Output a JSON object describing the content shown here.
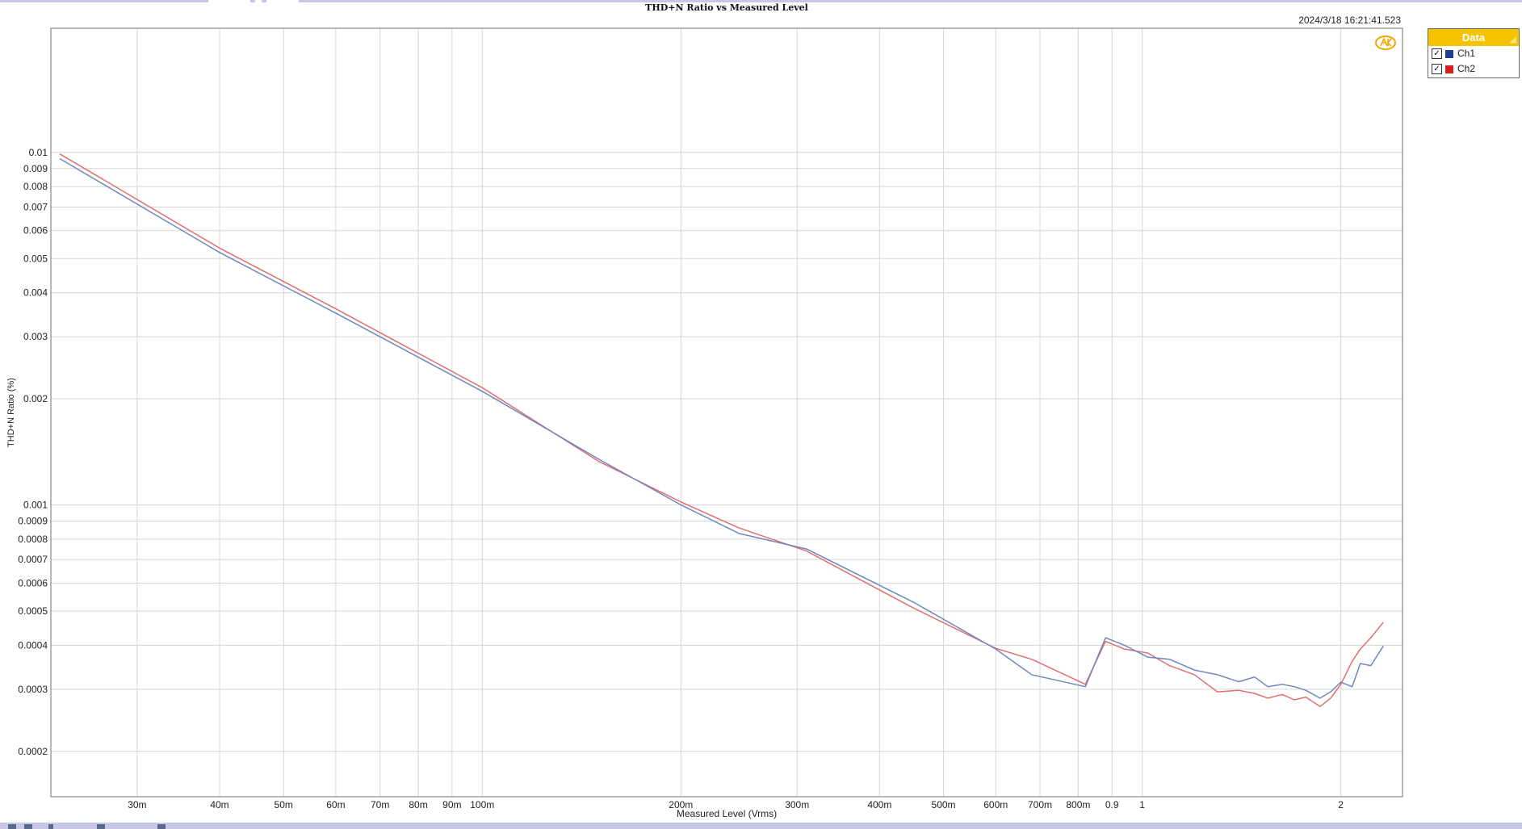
{
  "timestamp": "2024/3/18 16:21:41.523",
  "legend": {
    "title": "Data",
    "items": [
      {
        "name": "Ch1",
        "color": "#1f3f8f",
        "checked": true
      },
      {
        "name": "Ch2",
        "color": "#d42020",
        "checked": true
      }
    ]
  },
  "colors": {
    "ch1_line": "#6f86be",
    "ch2_line": "#e07070",
    "grid": "#d7d7d7",
    "logo": "#f2a800"
  },
  "chart_data": {
    "type": "line",
    "title": "THD+N Ratio vs Measured Level",
    "xlabel": "Measured Level (Vrms)",
    "ylabel": "THD+N Ratio (%)",
    "xscale": "log",
    "yscale": "log",
    "xlim": [
      0.0222,
      2.48
    ],
    "ylim": [
      0.0001487,
      0.0225
    ],
    "grid": true,
    "legend_position": "top-right-outside",
    "x_ticks": [
      {
        "value": 0.03,
        "label": "30m"
      },
      {
        "value": 0.04,
        "label": "40m"
      },
      {
        "value": 0.05,
        "label": "50m"
      },
      {
        "value": 0.06,
        "label": "60m"
      },
      {
        "value": 0.07,
        "label": "70m"
      },
      {
        "value": 0.08,
        "label": "80m"
      },
      {
        "value": 0.09,
        "label": "90m"
      },
      {
        "value": 0.1,
        "label": "100m"
      },
      {
        "value": 0.2,
        "label": "200m"
      },
      {
        "value": 0.3,
        "label": "300m"
      },
      {
        "value": 0.4,
        "label": "400m"
      },
      {
        "value": 0.5,
        "label": "500m"
      },
      {
        "value": 0.6,
        "label": "600m"
      },
      {
        "value": 0.7,
        "label": "700m"
      },
      {
        "value": 0.8,
        "label": "800m"
      },
      {
        "value": 0.9,
        "label": "0.9"
      },
      {
        "value": 1,
        "label": "1"
      },
      {
        "value": 2,
        "label": "2"
      }
    ],
    "y_ticks": [
      {
        "value": 0.01,
        "label": "0.01"
      },
      {
        "value": 0.009,
        "label": "0.009"
      },
      {
        "value": 0.008,
        "label": "0.008"
      },
      {
        "value": 0.007,
        "label": "0.007"
      },
      {
        "value": 0.006,
        "label": "0.006"
      },
      {
        "value": 0.005,
        "label": "0.005"
      },
      {
        "value": 0.004,
        "label": "0.004"
      },
      {
        "value": 0.003,
        "label": "0.003"
      },
      {
        "value": 0.002,
        "label": "0.002"
      },
      {
        "value": 0.001,
        "label": "0.001"
      },
      {
        "value": 0.0009,
        "label": "0.0009"
      },
      {
        "value": 0.0008,
        "label": "0.0008"
      },
      {
        "value": 0.0007,
        "label": "0.0007"
      },
      {
        "value": 0.0006,
        "label": "0.0006"
      },
      {
        "value": 0.0005,
        "label": "0.0005"
      },
      {
        "value": 0.0004,
        "label": "0.0004"
      },
      {
        "value": 0.0003,
        "label": "0.0003"
      },
      {
        "value": 0.0002,
        "label": "0.0002"
      }
    ],
    "series": [
      {
        "name": "Ch1",
        "points": [
          [
            0.0229,
            0.0096
          ],
          [
            0.04,
            0.0052
          ],
          [
            0.06,
            0.0035
          ],
          [
            0.1,
            0.0021
          ],
          [
            0.15,
            0.00135
          ],
          [
            0.2,
            0.001
          ],
          [
            0.245,
            0.00083
          ],
          [
            0.31,
            0.00075
          ],
          [
            0.45,
            0.00053
          ],
          [
            0.6,
            0.00039
          ],
          [
            0.68,
            0.00033
          ],
          [
            0.82,
            0.000305
          ],
          [
            0.88,
            0.00042
          ],
          [
            0.94,
            0.0004
          ],
          [
            1.02,
            0.00037
          ],
          [
            1.1,
            0.000365
          ],
          [
            1.2,
            0.00034
          ],
          [
            1.3,
            0.00033
          ],
          [
            1.4,
            0.000315
          ],
          [
            1.48,
            0.000325
          ],
          [
            1.55,
            0.000305
          ],
          [
            1.63,
            0.00031
          ],
          [
            1.7,
            0.000305
          ],
          [
            1.77,
            0.000298
          ],
          [
            1.86,
            0.000283
          ],
          [
            1.93,
            0.000295
          ],
          [
            2.0,
            0.000314
          ],
          [
            2.08,
            0.000305
          ],
          [
            2.14,
            0.000355
          ],
          [
            2.22,
            0.00035
          ],
          [
            2.32,
            0.000398
          ]
        ]
      },
      {
        "name": "Ch2",
        "points": [
          [
            0.0229,
            0.0099
          ],
          [
            0.04,
            0.00535
          ],
          [
            0.06,
            0.0036
          ],
          [
            0.1,
            0.00215
          ],
          [
            0.15,
            0.00133
          ],
          [
            0.2,
            0.00102
          ],
          [
            0.245,
            0.00086
          ],
          [
            0.31,
            0.00074
          ],
          [
            0.45,
            0.00051
          ],
          [
            0.6,
            0.000392
          ],
          [
            0.68,
            0.000365
          ],
          [
            0.82,
            0.00031
          ],
          [
            0.88,
            0.00041
          ],
          [
            0.94,
            0.00039
          ],
          [
            1.02,
            0.00038
          ],
          [
            1.1,
            0.00035
          ],
          [
            1.2,
            0.00033
          ],
          [
            1.3,
            0.000295
          ],
          [
            1.4,
            0.000298
          ],
          [
            1.48,
            0.000292
          ],
          [
            1.55,
            0.000283
          ],
          [
            1.63,
            0.00029
          ],
          [
            1.7,
            0.00028
          ],
          [
            1.77,
            0.000285
          ],
          [
            1.86,
            0.000268
          ],
          [
            1.93,
            0.000283
          ],
          [
            2.0,
            0.00031
          ],
          [
            2.08,
            0.00036
          ],
          [
            2.14,
            0.00039
          ],
          [
            2.22,
            0.00042
          ],
          [
            2.32,
            0.000465
          ]
        ]
      }
    ]
  }
}
